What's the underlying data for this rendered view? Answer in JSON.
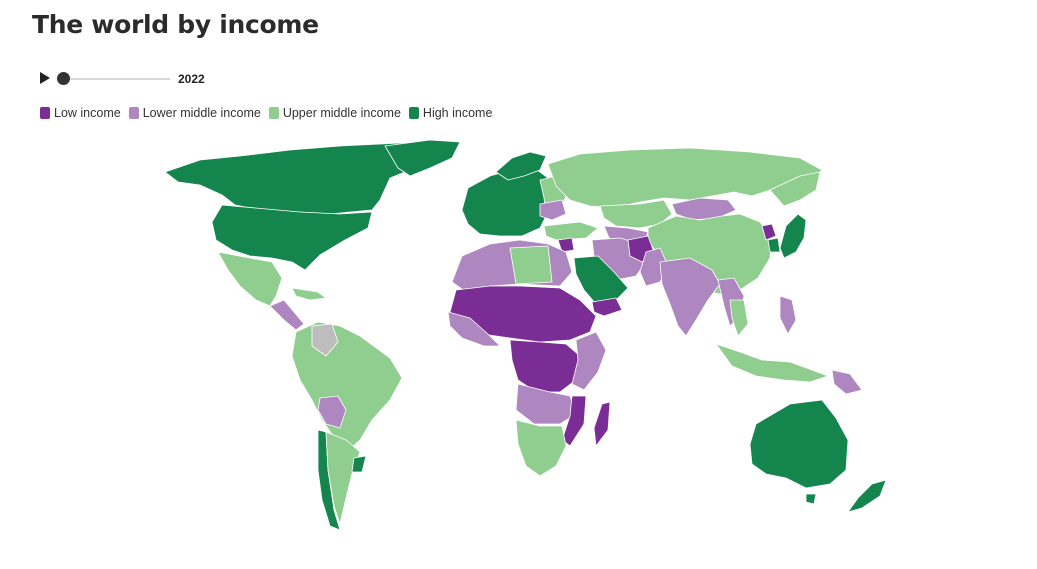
{
  "title": "The world by income",
  "player": {
    "year": "2022",
    "play_icon": "play-icon",
    "progress": 0
  },
  "legend": [
    {
      "label": "Low income",
      "color": "#7b2d96"
    },
    {
      "label": "Lower middle income",
      "color": "#ae86c0"
    },
    {
      "label": "Upper middle income",
      "color": "#8fce8f"
    },
    {
      "label": "High income",
      "color": "#15854e"
    }
  ],
  "colors": {
    "no_data": "#bdbdbd"
  }
}
